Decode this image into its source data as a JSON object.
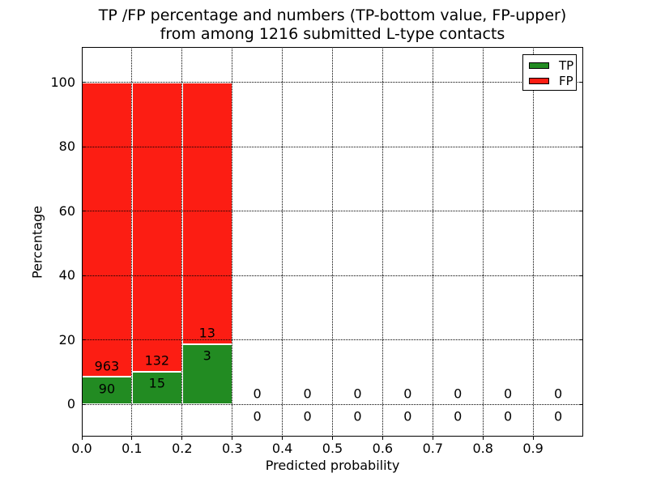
{
  "title": {
    "line1": "TP /FP percentage and numbers (TP-bottom value, FP-upper)",
    "line2": "from among 1216 submitted L-type contacts"
  },
  "chart_data": {
    "type": "bar",
    "stacked": true,
    "title": "TP /FP percentage and numbers (TP-bottom value, FP-upper)",
    "subtitle": "from among 1216 submitted L-type contacts",
    "xlabel": "Predicted probability",
    "ylabel": "Percentage",
    "total_submitted_contacts": 1216,
    "xlim": [
      0.0,
      1.0
    ],
    "ylim": [
      -10,
      111
    ],
    "grid": "dotted",
    "bin_width": 0.1,
    "bin_starts": [
      0.0,
      0.1,
      0.2,
      0.3,
      0.4,
      0.5,
      0.6,
      0.7,
      0.8,
      0.9
    ],
    "xtick_labels": [
      "0.0",
      "0.1",
      "0.2",
      "0.3",
      "0.4",
      "0.5",
      "0.6",
      "0.7",
      "0.8",
      "0.9"
    ],
    "ytick_values": [
      0,
      20,
      40,
      60,
      80,
      100
    ],
    "series": [
      {
        "name": "TP",
        "position": "bottom",
        "color": "#228b22",
        "counts": [
          90,
          15,
          3,
          0,
          0,
          0,
          0,
          0,
          0,
          0
        ],
        "pct": [
          8.55,
          10.2,
          18.75,
          0,
          0,
          0,
          0,
          0,
          0,
          0
        ]
      },
      {
        "name": "FP",
        "position": "top",
        "color": "#fc1d13",
        "counts": [
          963,
          132,
          13,
          0,
          0,
          0,
          0,
          0,
          0,
          0
        ],
        "pct": [
          91.45,
          89.8,
          81.25,
          0,
          0,
          0,
          0,
          0,
          0,
          0
        ]
      }
    ],
    "legend": {
      "position": "upper right",
      "entries": [
        {
          "label": "TP",
          "color": "#228b22"
        },
        {
          "label": "FP",
          "color": "#fc1d13"
        }
      ]
    }
  }
}
